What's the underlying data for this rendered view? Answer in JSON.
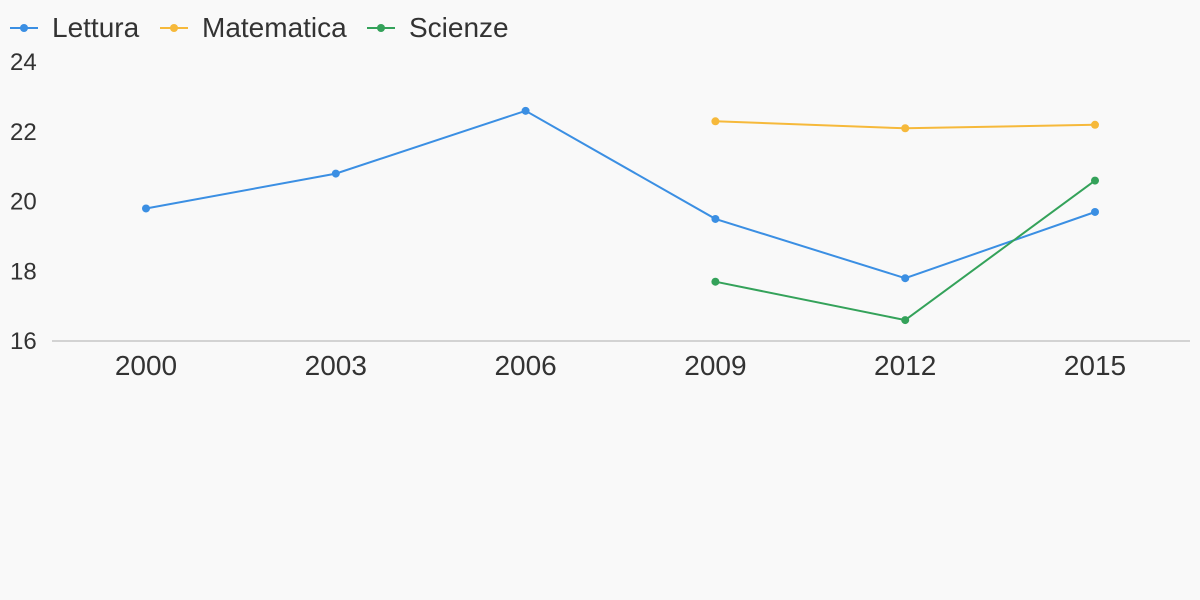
{
  "chart_data": {
    "type": "line",
    "title": "",
    "xlabel": "",
    "ylabel": "",
    "categories": [
      "2000",
      "2003",
      "2006",
      "2009",
      "2012",
      "2015"
    ],
    "ylim": [
      16,
      24
    ],
    "yticks": [
      16,
      18,
      20,
      22,
      24
    ],
    "grid": false,
    "legend_position": "top-left",
    "series": [
      {
        "name": "Lettura",
        "color": "#3b8fe3",
        "values": [
          19.8,
          20.8,
          22.6,
          19.5,
          17.8,
          19.7
        ]
      },
      {
        "name": "Matematica",
        "color": "#f6b93b",
        "values": [
          null,
          null,
          null,
          22.3,
          22.1,
          22.2
        ]
      },
      {
        "name": "Scienze",
        "color": "#34a25a",
        "values": [
          null,
          null,
          null,
          17.7,
          16.6,
          20.6
        ]
      }
    ]
  }
}
